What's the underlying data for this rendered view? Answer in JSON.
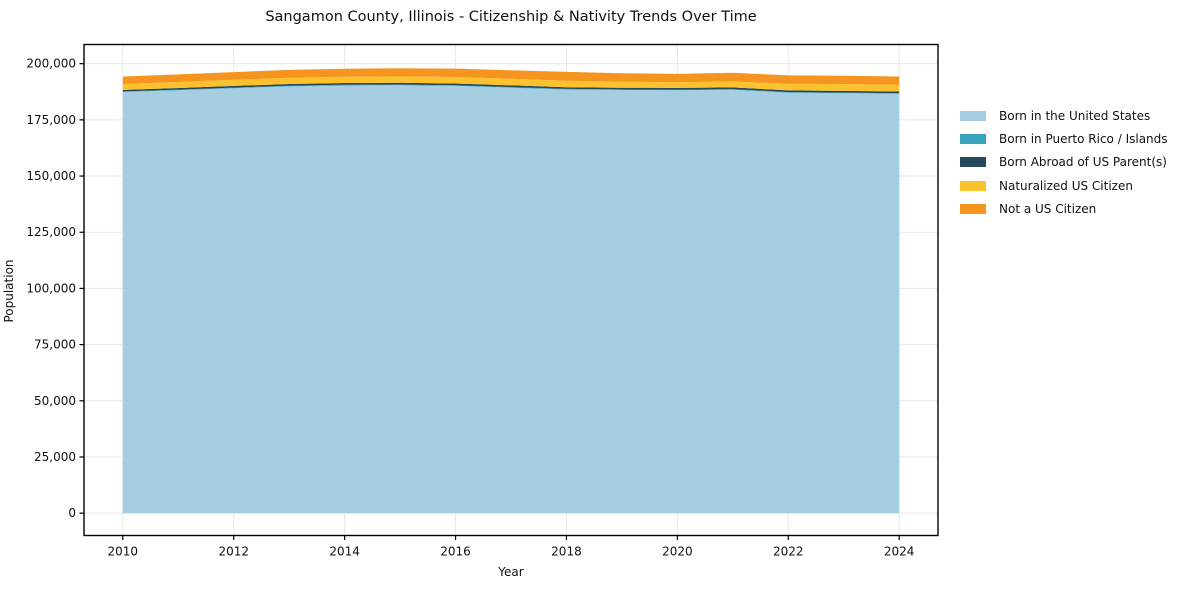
{
  "chart_data": {
    "type": "area",
    "stacked": true,
    "title": "Sangamon County, Illinois - Citizenship & Nativity Trends Over Time",
    "xlabel": "Year",
    "ylabel": "Population",
    "x": [
      2010,
      2011,
      2012,
      2013,
      2014,
      2015,
      2016,
      2017,
      2018,
      2019,
      2020,
      2021,
      2022,
      2023,
      2024
    ],
    "series": [
      {
        "name": "Born in the United States",
        "color": "#a5cee3",
        "values": [
          187400,
          188200,
          189100,
          189900,
          190300,
          190400,
          190100,
          189300,
          188500,
          188300,
          188200,
          188400,
          187100,
          186900,
          186600
        ]
      },
      {
        "name": "Born in Puerto Rico / Islands",
        "color": "#38a2bd",
        "values": [
          250,
          260,
          270,
          280,
          290,
          300,
          300,
          290,
          280,
          270,
          260,
          270,
          260,
          250,
          250
        ]
      },
      {
        "name": "Born Abroad of US Parent(s)",
        "color": "#27495c",
        "values": [
          700,
          720,
          740,
          770,
          790,
          800,
          790,
          770,
          750,
          740,
          740,
          760,
          750,
          740,
          750
        ]
      },
      {
        "name": "Naturalized US Citizen",
        "color": "#fcc22d",
        "values": [
          2600,
          2650,
          2700,
          2750,
          2800,
          2850,
          2900,
          2900,
          2900,
          2700,
          2550,
          2700,
          2950,
          3000,
          3000
        ]
      },
      {
        "name": "Not a US Citizen",
        "color": "#f5941f",
        "values": [
          3300,
          3400,
          3450,
          3550,
          3600,
          3650,
          3700,
          3800,
          3900,
          3750,
          3700,
          3800,
          3700,
          3700,
          3700
        ]
      }
    ],
    "xticks": [
      2010,
      2012,
      2014,
      2016,
      2018,
      2020,
      2022,
      2024
    ],
    "yticks": [
      0,
      25000,
      50000,
      75000,
      100000,
      125000,
      150000,
      175000,
      200000
    ],
    "xlim": [
      2009.3,
      2024.7
    ],
    "ylim": [
      -9930,
      208530
    ],
    "grid": true,
    "grid_color": "#e7e7e7",
    "spine_color": "#000000",
    "tick_label_color": "#111111",
    "legend_position": "right"
  }
}
